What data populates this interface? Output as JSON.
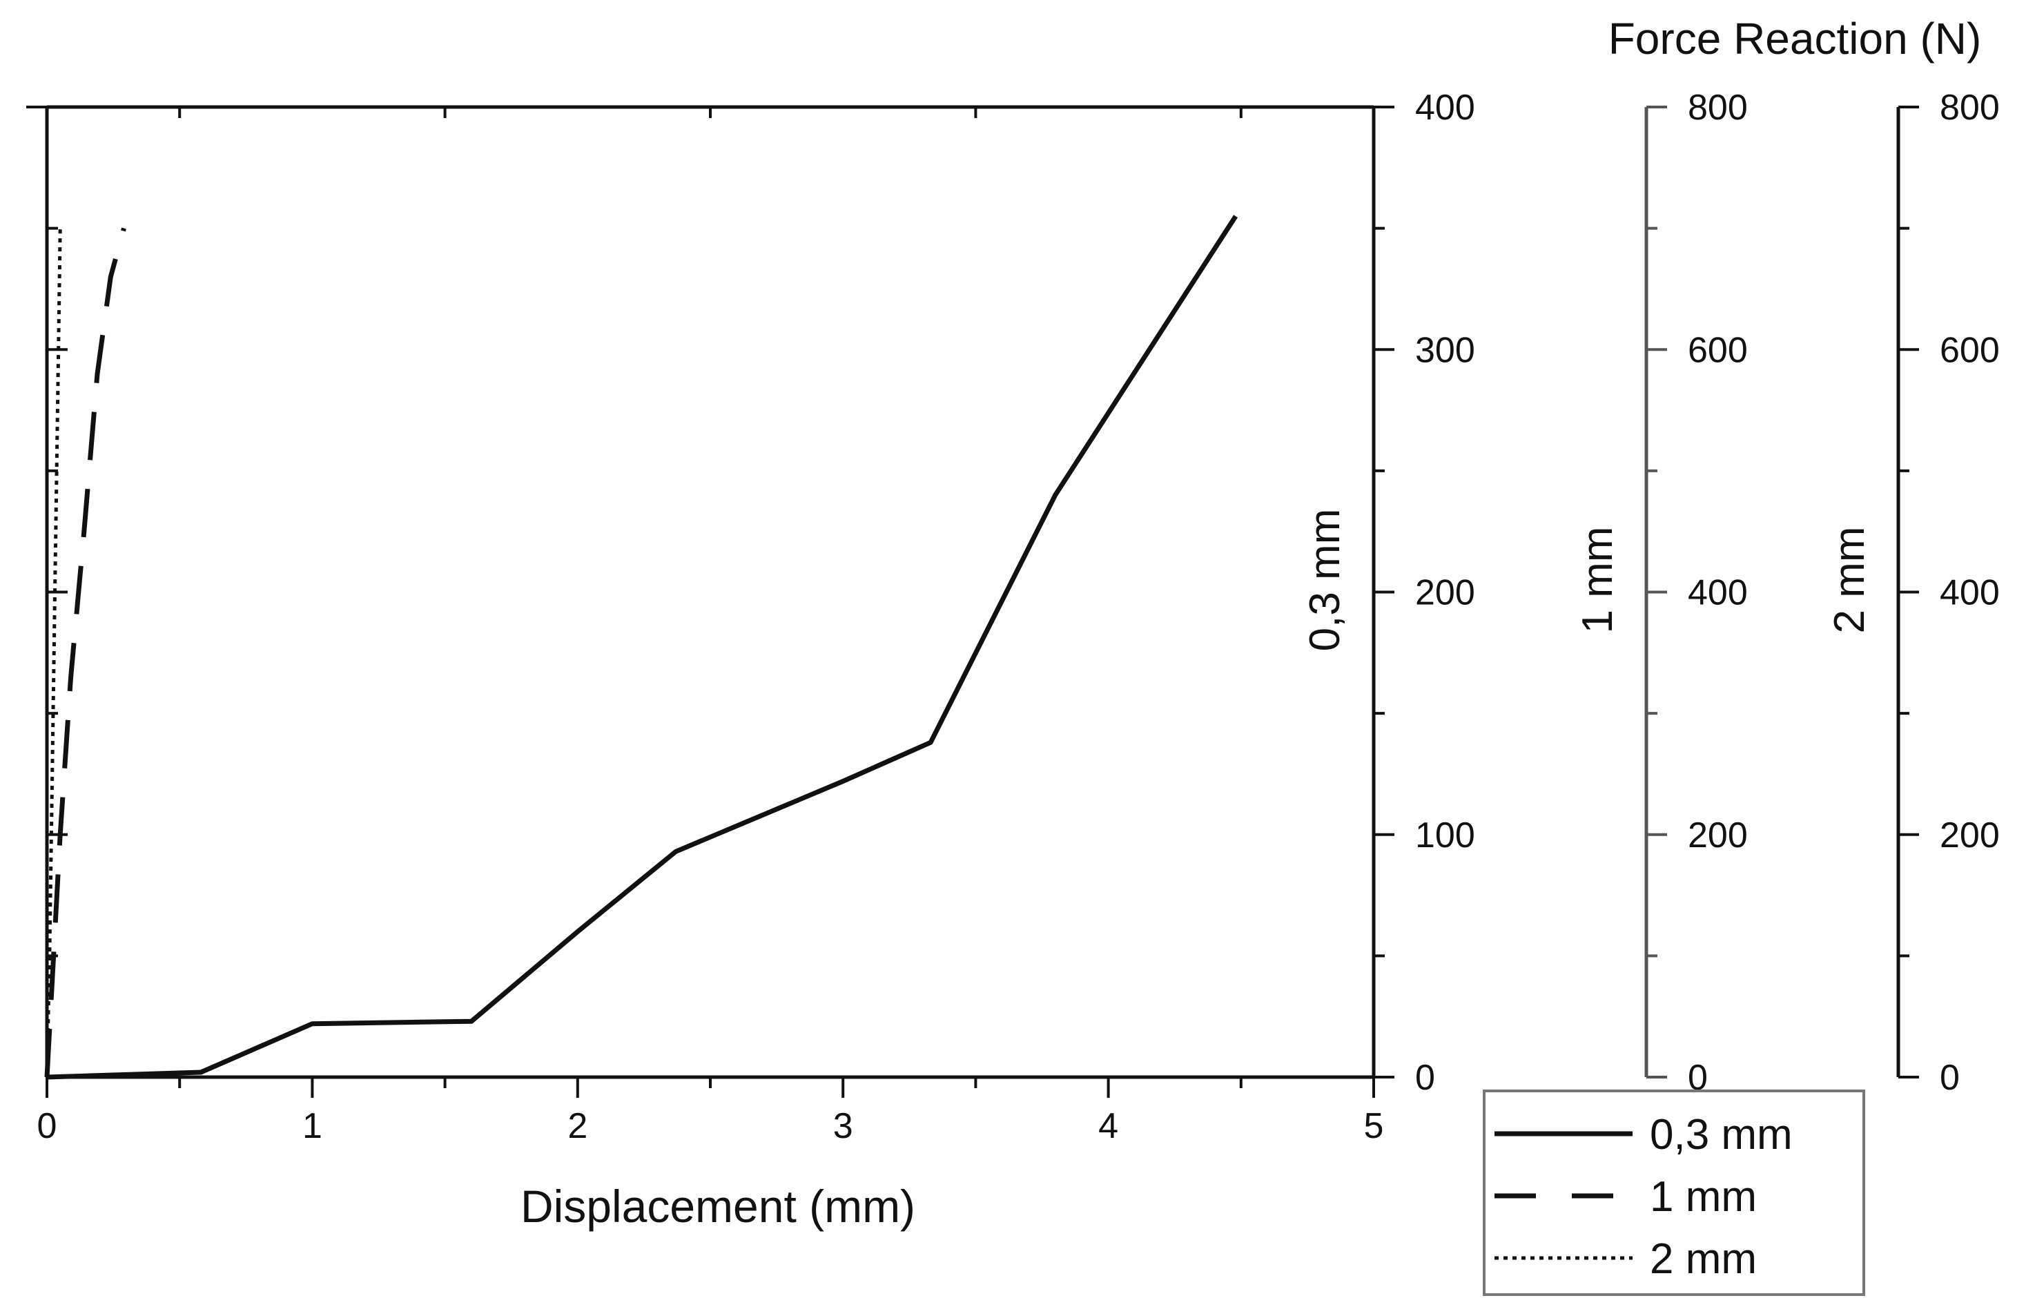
{
  "chart_data": {
    "type": "line",
    "title": "Force Reaction (N)",
    "xlabel": "Displacement (mm)",
    "xlim": [
      0,
      5
    ],
    "xticks": [
      "0",
      "1",
      "2",
      "3",
      "4",
      "5"
    ],
    "grid": false,
    "legend_position": "bottom-right",
    "axes": [
      {
        "id": "y1",
        "label": "0,3 mm",
        "range": [
          0,
          400
        ],
        "ticks": [
          "0",
          "100",
          "200",
          "300",
          "400"
        ],
        "color": "#111111"
      },
      {
        "id": "y2",
        "label": "1 mm",
        "range": [
          0,
          800
        ],
        "ticks": [
          "0",
          "200",
          "400",
          "600",
          "800"
        ],
        "color": "#555555"
      },
      {
        "id": "y3",
        "label": "2 mm",
        "range": [
          0,
          800
        ],
        "ticks": [
          "0",
          "200",
          "400",
          "600",
          "800"
        ],
        "color": "#111111"
      }
    ],
    "series": [
      {
        "name": "0,3 mm",
        "axis": "y1",
        "style": "solid",
        "x": [
          0,
          0.58,
          1.0,
          1.6,
          2.0,
          2.37,
          3.0,
          3.33,
          3.8,
          4.48
        ],
        "y": [
          0,
          2,
          22,
          23,
          60,
          93,
          122,
          138,
          240,
          355
        ]
      },
      {
        "name": "1 mm",
        "axis": "y2",
        "style": "dashed",
        "x": [
          0,
          0.02,
          0.05,
          0.09,
          0.14,
          0.19,
          0.24,
          0.29
        ],
        "y": [
          0,
          80,
          200,
          330,
          450,
          580,
          660,
          700
        ]
      },
      {
        "name": "2 mm",
        "axis": "y3",
        "style": "dotted",
        "x": [
          0,
          0.01,
          0.02,
          0.03,
          0.04,
          0.05
        ],
        "y": [
          0,
          100,
          250,
          400,
          550,
          700
        ]
      }
    ]
  }
}
